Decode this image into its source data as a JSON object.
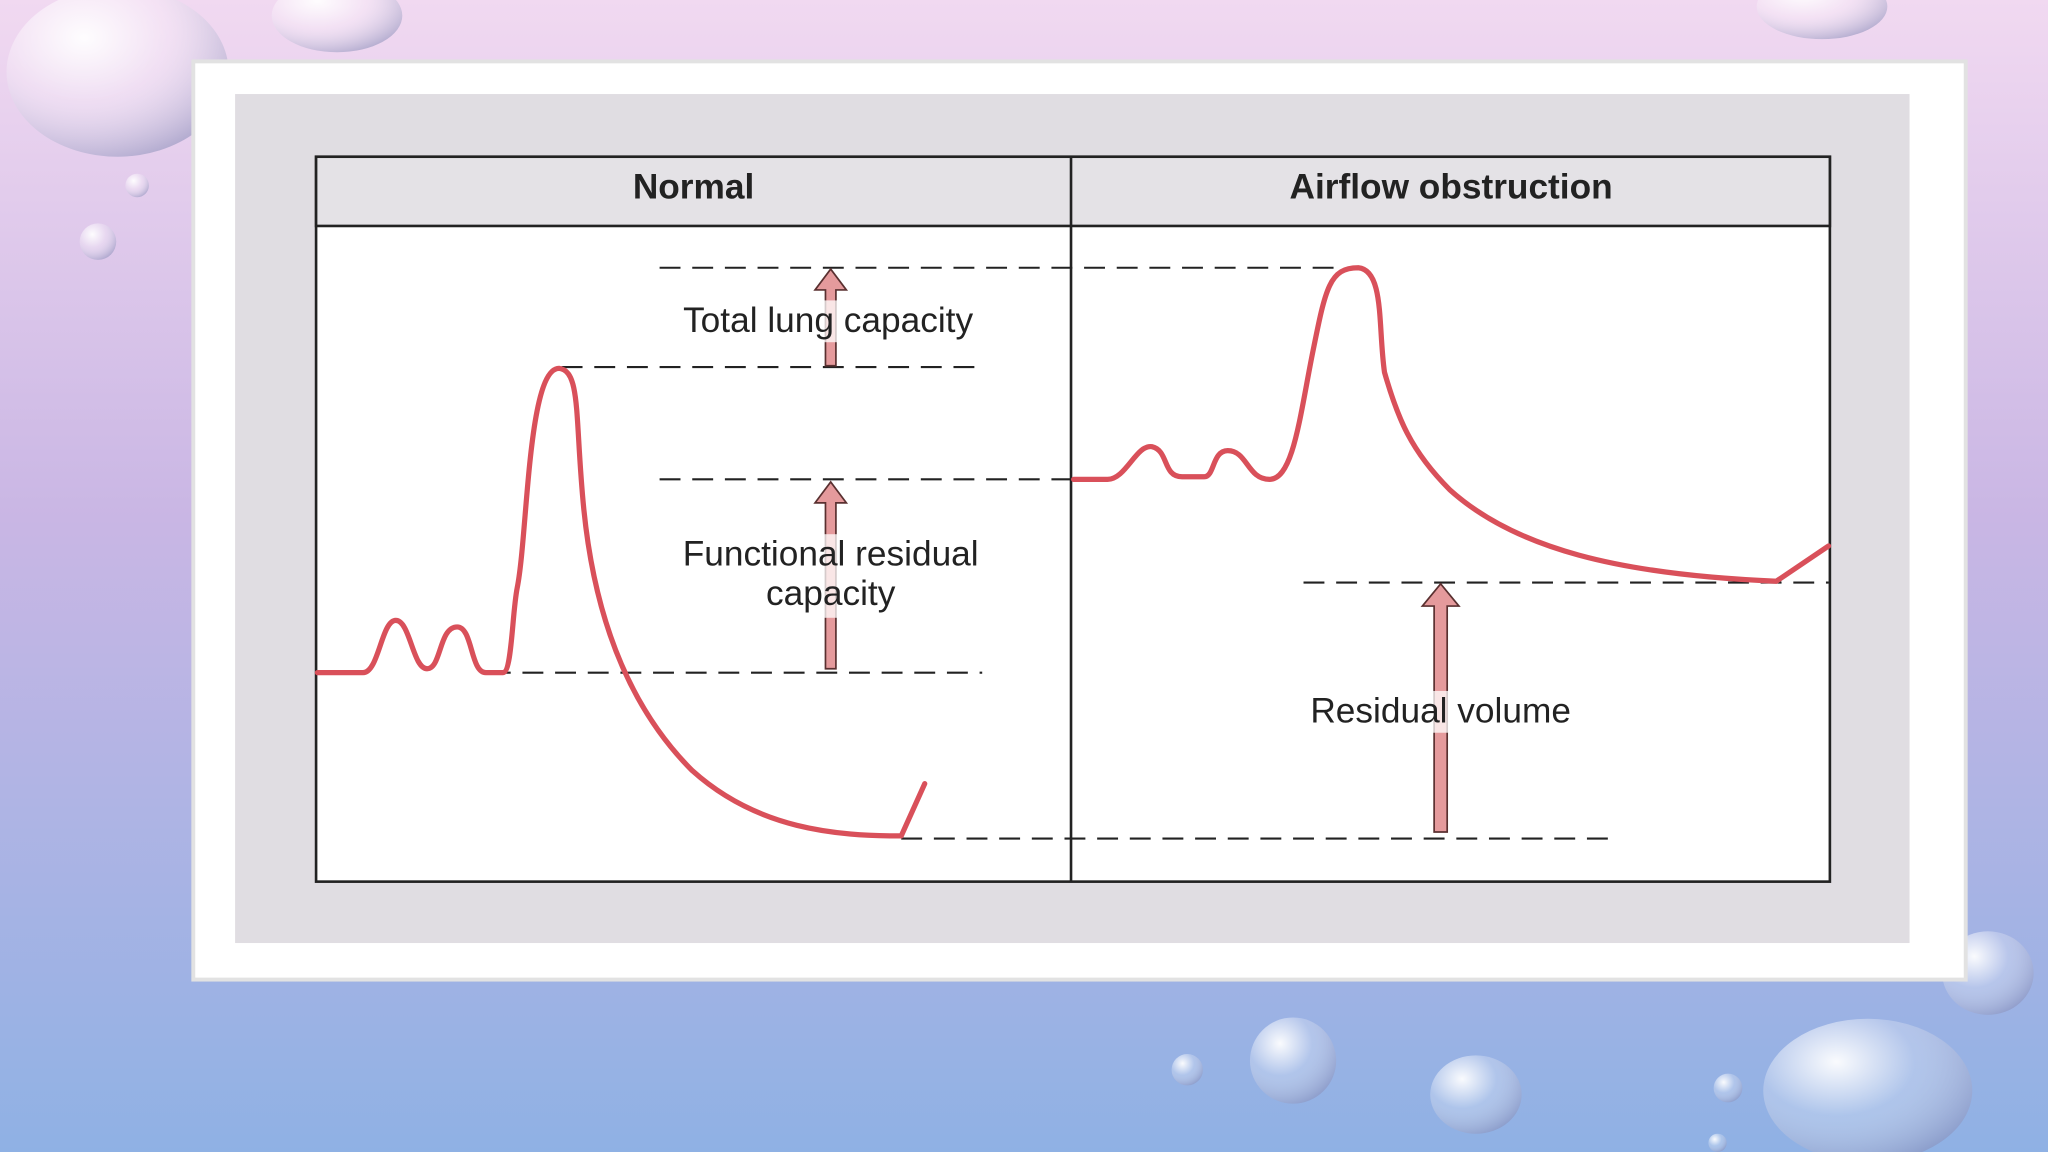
{
  "panels": [
    {
      "header": "Normal",
      "labels": [
        {
          "lines": [
            "Total lung capacity"
          ]
        },
        {
          "lines": [
            "Functional residual",
            "capacity"
          ]
        }
      ]
    },
    {
      "header": "Airflow obstruction",
      "labels": [
        {
          "lines": [
            "Residual volume"
          ]
        }
      ]
    }
  ]
}
